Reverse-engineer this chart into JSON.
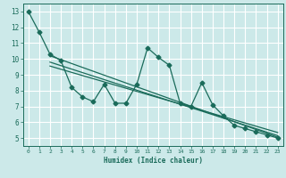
{
  "xlabel": "Humidex (Indice chaleur)",
  "ylabel": "",
  "bg_color": "#cce9e9",
  "grid_color": "#ffffff",
  "line_color": "#1a6b5a",
  "xlim": [
    -0.5,
    23.5
  ],
  "ylim": [
    4.5,
    13.5
  ],
  "xticks": [
    0,
    1,
    2,
    3,
    4,
    5,
    6,
    7,
    8,
    9,
    10,
    11,
    12,
    13,
    14,
    15,
    16,
    17,
    18,
    19,
    20,
    21,
    22,
    23
  ],
  "yticks": [
    5,
    6,
    7,
    8,
    9,
    10,
    11,
    12,
    13
  ],
  "data_x": [
    0,
    1,
    2,
    3,
    4,
    5,
    6,
    7,
    8,
    9,
    10,
    11,
    12,
    13,
    14,
    15,
    16,
    17,
    18,
    19,
    20,
    21,
    22,
    23
  ],
  "data_y": [
    13.0,
    11.7,
    10.3,
    9.9,
    8.2,
    7.6,
    7.3,
    8.4,
    7.2,
    7.2,
    8.4,
    10.7,
    10.1,
    9.6,
    7.2,
    7.0,
    8.5,
    7.1,
    6.4,
    5.8,
    5.6,
    5.4,
    5.2,
    5.0
  ],
  "trend1_x": [
    2,
    23
  ],
  "trend1_y": [
    10.2,
    5.05
  ],
  "trend2_x": [
    2,
    23
  ],
  "trend2_y": [
    9.8,
    5.15
  ],
  "trend3_x": [
    2,
    23
  ],
  "trend3_y": [
    9.55,
    5.35
  ],
  "marker_size": 2.5,
  "line_width": 0.9
}
